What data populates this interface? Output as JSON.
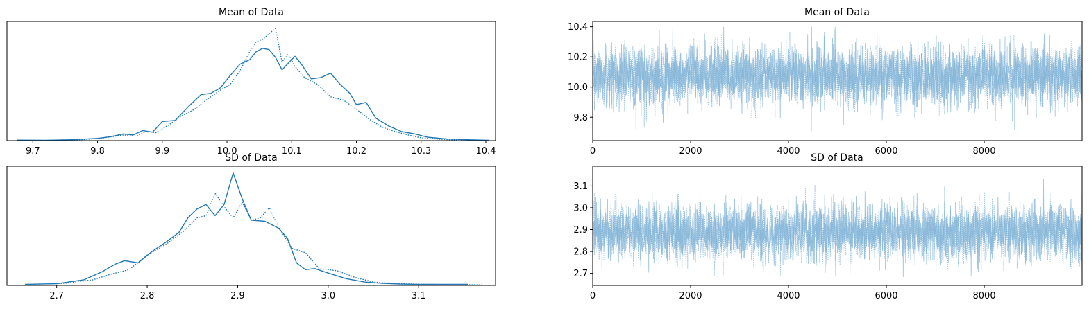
{
  "figure": {
    "line_color": "#1f77b4",
    "trace_color": "#7fb2d6"
  },
  "chart_data": [
    {
      "type": "line",
      "title": "Mean of Data",
      "xlabel": "",
      "ylabel": "",
      "xlim": [
        9.66,
        10.415
      ],
      "ylim": [
        0,
        1.06
      ],
      "y_ticks_shown": false,
      "x_ticks": [
        9.7,
        9.8,
        9.9,
        10.0,
        10.1,
        10.2,
        10.3,
        10.4
      ],
      "x_tick_labels": [
        "9.7",
        "9.8",
        "9.9",
        "10.0",
        "10.1",
        "10.2",
        "10.3",
        "10.4"
      ],
      "series": [
        {
          "style": "solid",
          "x": [
            9.675,
            9.72,
            9.76,
            9.8,
            9.82,
            9.84,
            9.855,
            9.87,
            9.885,
            9.9,
            9.92,
            9.94,
            9.96,
            9.975,
            9.99,
            10.005,
            10.02,
            10.035,
            10.045,
            10.055,
            10.065,
            10.075,
            10.085,
            10.095,
            10.105,
            10.115,
            10.13,
            10.145,
            10.16,
            10.175,
            10.19,
            10.2,
            10.215,
            10.23,
            10.25,
            10.27,
            10.29,
            10.31,
            10.34,
            10.37,
            10.405
          ],
          "y": [
            0.005,
            0.003,
            0.008,
            0.02,
            0.035,
            0.06,
            0.05,
            0.09,
            0.075,
            0.17,
            0.18,
            0.3,
            0.41,
            0.42,
            0.47,
            0.58,
            0.68,
            0.72,
            0.79,
            0.82,
            0.81,
            0.74,
            0.63,
            0.69,
            0.75,
            0.68,
            0.55,
            0.56,
            0.6,
            0.5,
            0.42,
            0.32,
            0.34,
            0.2,
            0.13,
            0.08,
            0.06,
            0.03,
            0.015,
            0.008,
            0.004
          ]
        },
        {
          "style": "dotted",
          "x": [
            9.745,
            9.78,
            9.81,
            9.84,
            9.86,
            9.875,
            9.89,
            9.91,
            9.93,
            9.95,
            9.97,
            9.99,
            10.005,
            10.02,
            10.035,
            10.045,
            10.055,
            10.065,
            10.075,
            10.085,
            10.095,
            10.105,
            10.12,
            10.14,
            10.16,
            10.18,
            10.2,
            10.22,
            10.24,
            10.26,
            10.28,
            10.3,
            10.33,
            10.36,
            10.38
          ],
          "y": [
            0.004,
            0.01,
            0.025,
            0.05,
            0.04,
            0.08,
            0.07,
            0.14,
            0.22,
            0.28,
            0.37,
            0.45,
            0.5,
            0.62,
            0.79,
            0.88,
            0.9,
            0.95,
            1.0,
            0.7,
            0.77,
            0.66,
            0.56,
            0.5,
            0.39,
            0.36,
            0.28,
            0.19,
            0.12,
            0.08,
            0.05,
            0.025,
            0.012,
            0.005,
            0.003
          ]
        }
      ]
    },
    {
      "type": "line",
      "title": "Mean of Data",
      "xlabel": "",
      "ylabel": "",
      "xlim": [
        0,
        9999
      ],
      "ylim": [
        9.645,
        10.435
      ],
      "x_ticks": [
        0,
        2000,
        4000,
        6000,
        8000
      ],
      "x_tick_labels": [
        "0",
        "2000",
        "4000",
        "6000",
        "8000"
      ],
      "y_ticks": [
        9.8,
        10.0,
        10.2,
        10.4
      ],
      "y_tick_labels": [
        "9.8",
        "10.0",
        "10.2",
        "10.4"
      ],
      "draws": 10000,
      "series": [
        {
          "style": "solid",
          "center": 10.075,
          "spread": 0.1,
          "min": 9.67,
          "max": 10.4
        },
        {
          "style": "dotted",
          "center": 10.07,
          "spread": 0.1,
          "min": 9.72,
          "max": 10.39
        }
      ]
    },
    {
      "type": "line",
      "title": "SD of Data",
      "xlabel": "",
      "ylabel": "",
      "xlim": [
        2.645,
        3.185
      ],
      "ylim": [
        0,
        1.06
      ],
      "y_ticks_shown": false,
      "x_ticks": [
        2.7,
        2.8,
        2.9,
        3.0,
        3.1
      ],
      "x_tick_labels": [
        "2.7",
        "2.8",
        "2.9",
        "3.0",
        "3.1"
      ],
      "series": [
        {
          "style": "solid",
          "x": [
            2.665,
            2.7,
            2.73,
            2.75,
            2.765,
            2.775,
            2.79,
            2.805,
            2.82,
            2.835,
            2.845,
            2.855,
            2.865,
            2.875,
            2.885,
            2.895,
            2.905,
            2.915,
            2.93,
            2.945,
            2.955,
            2.965,
            2.975,
            2.985,
            3.0,
            3.02,
            3.04,
            3.06,
            3.08,
            3.1,
            3.13,
            3.155
          ],
          "y": [
            0.01,
            0.015,
            0.05,
            0.12,
            0.19,
            0.22,
            0.2,
            0.3,
            0.38,
            0.47,
            0.6,
            0.68,
            0.72,
            0.62,
            0.72,
            1.0,
            0.77,
            0.58,
            0.57,
            0.51,
            0.42,
            0.2,
            0.14,
            0.15,
            0.11,
            0.06,
            0.03,
            0.018,
            0.012,
            0.01,
            0.01,
            0.01
          ]
        },
        {
          "style": "dotted",
          "x": [
            2.675,
            2.71,
            2.74,
            2.76,
            2.78,
            2.8,
            2.82,
            2.84,
            2.855,
            2.865,
            2.875,
            2.885,
            2.895,
            2.905,
            2.915,
            2.925,
            2.935,
            2.945,
            2.96,
            2.975,
            2.99,
            3.01,
            3.03,
            3.05,
            3.08,
            3.12,
            3.17
          ],
          "y": [
            0.01,
            0.02,
            0.05,
            0.1,
            0.14,
            0.27,
            0.36,
            0.48,
            0.6,
            0.62,
            0.82,
            0.7,
            0.6,
            0.74,
            0.58,
            0.6,
            0.69,
            0.52,
            0.33,
            0.29,
            0.15,
            0.13,
            0.07,
            0.03,
            0.015,
            0.008,
            0.005
          ]
        }
      ]
    },
    {
      "type": "line",
      "title": "SD of Data",
      "xlabel": "",
      "ylabel": "",
      "xlim": [
        0,
        9999
      ],
      "ylim": [
        2.645,
        3.19
      ],
      "x_ticks": [
        0,
        2000,
        4000,
        6000,
        8000
      ],
      "x_tick_labels": [
        "0",
        "2000",
        "4000",
        "6000",
        "8000"
      ],
      "y_ticks": [
        2.7,
        2.8,
        2.9,
        3.0,
        3.1
      ],
      "y_tick_labels": [
        "2.7",
        "2.8",
        "2.9",
        "3.0",
        "3.1"
      ],
      "draws": 10000,
      "series": [
        {
          "style": "solid",
          "center": 2.89,
          "spread": 0.065,
          "min": 2.67,
          "max": 3.16
        },
        {
          "style": "dotted",
          "center": 2.885,
          "spread": 0.065,
          "min": 2.69,
          "max": 3.14
        }
      ]
    }
  ]
}
